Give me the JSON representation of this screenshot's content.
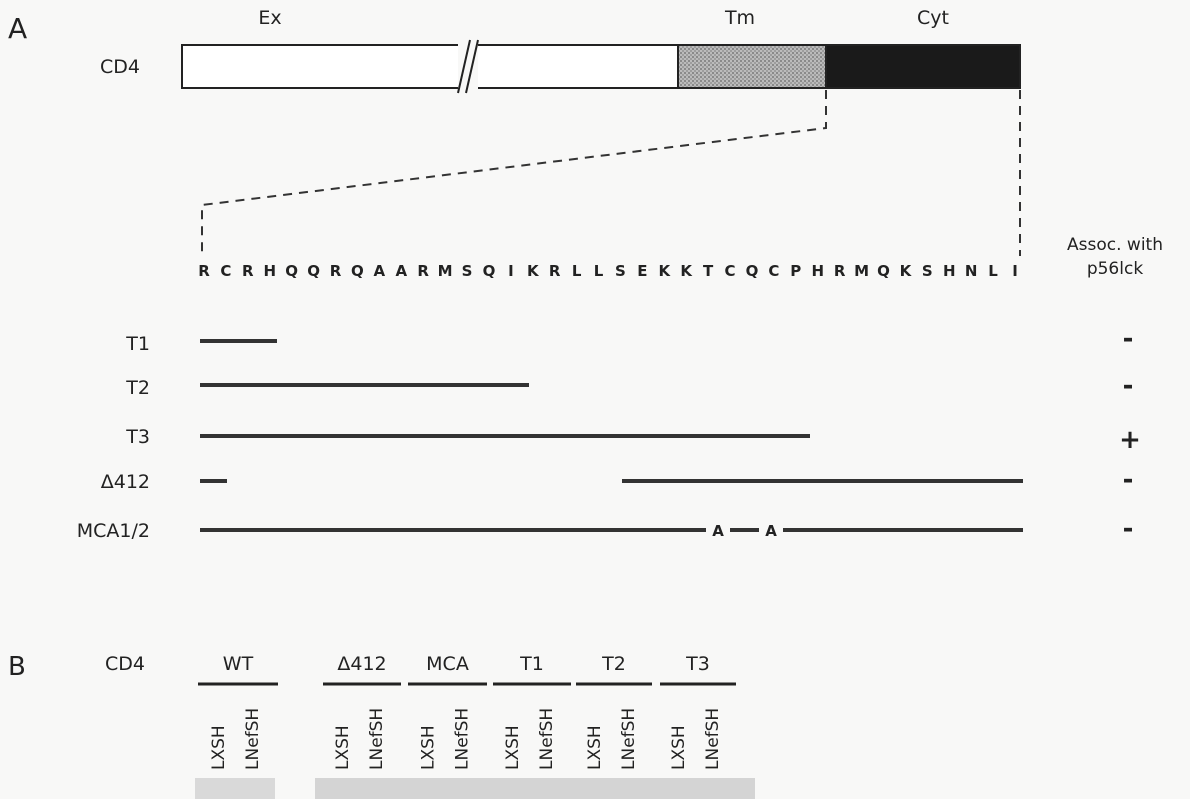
{
  "panel_a": {
    "label": "A",
    "protein": "CD4",
    "domains": [
      "Ex",
      "Tm",
      "Cyt"
    ],
    "sequence": [
      "R",
      "C",
      "R",
      "H",
      "Q",
      "Q",
      "R",
      "Q",
      "A",
      "A",
      "R",
      "M",
      "S",
      "Q",
      "I",
      "K",
      "R",
      "L",
      "L",
      "S",
      "E",
      "K",
      "K",
      "T",
      "C",
      "Q",
      "C",
      "P",
      "H",
      "R",
      "M",
      "Q",
      "K",
      "S",
      "H",
      "N",
      "L",
      "I"
    ],
    "assoc_header": [
      "Assoc. with",
      "p56lck"
    ],
    "constructs": [
      {
        "name": "T1",
        "assoc": "-"
      },
      {
        "name": "T2",
        "assoc": "-"
      },
      {
        "name": "T3",
        "assoc": "+"
      },
      {
        "name": "Δ412",
        "assoc": "-"
      },
      {
        "name": "MCA1/2",
        "assoc": "-"
      }
    ],
    "mutation_marks": [
      "A",
      "A"
    ]
  },
  "panel_b": {
    "label": "B",
    "protein": "CD4",
    "groups": [
      {
        "name": "WT",
        "lanes": [
          "LXSH",
          "LNefSH"
        ]
      },
      {
        "name": "Δ412",
        "lanes": [
          "LXSH",
          "LNefSH"
        ]
      },
      {
        "name": "MCA",
        "lanes": [
          "LXSH",
          "LNefSH"
        ]
      },
      {
        "name": "T1",
        "lanes": [
          "LXSH",
          "LNefSH"
        ]
      },
      {
        "name": "T2",
        "lanes": [
          "LXSH",
          "LNefSH"
        ]
      },
      {
        "name": "T3",
        "lanes": [
          "LXSH",
          "LNefSH"
        ]
      }
    ]
  }
}
